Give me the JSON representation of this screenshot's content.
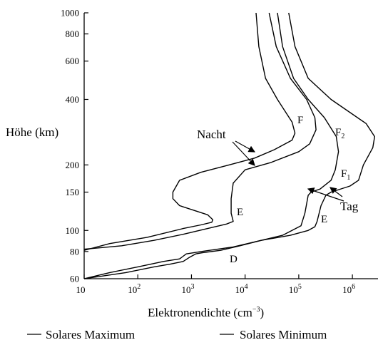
{
  "chart_data": {
    "type": "line",
    "xlabel": "Elektronendichte (cm",
    "xlabel_exp": "−3",
    "xlabel_close": ")",
    "ylabel": "Höhe (km)",
    "x_scale": "log",
    "y_scale": "log",
    "xlim": [
      10,
      3000000
    ],
    "ylim": [
      60,
      1000
    ],
    "x_ticks": [
      {
        "value": 10,
        "base": "10",
        "exp": ""
      },
      {
        "value": 100,
        "base": "10",
        "exp": "2"
      },
      {
        "value": 1000,
        "base": "10",
        "exp": "3"
      },
      {
        "value": 10000,
        "base": "10",
        "exp": "4"
      },
      {
        "value": 100000,
        "base": "10",
        "exp": "5"
      },
      {
        "value": 1000000,
        "base": "10",
        "exp": "6"
      }
    ],
    "y_ticks": [
      {
        "value": 1000,
        "label": "1000"
      },
      {
        "value": 800,
        "label": "800"
      },
      {
        "value": 600,
        "label": "600"
      },
      {
        "value": 400,
        "label": "400"
      },
      {
        "value": 200,
        "label": "200"
      },
      {
        "value": 150,
        "label": "150"
      },
      {
        "value": 100,
        "label": "100"
      },
      {
        "value": 80,
        "label": "80"
      },
      {
        "value": 60,
        "label": "60"
      }
    ],
    "series": [
      {
        "key": "night-inner",
        "points": [
          [
            16000,
            1000
          ],
          [
            18000,
            700
          ],
          [
            24000,
            500
          ],
          [
            40000,
            400
          ],
          [
            75000,
            315
          ],
          [
            85000,
            280
          ],
          [
            75000,
            260
          ],
          [
            35000,
            235
          ],
          [
            15000,
            215
          ],
          [
            5000,
            200
          ],
          [
            1500,
            185
          ],
          [
            600,
            170
          ],
          [
            450,
            150
          ],
          [
            450,
            140
          ],
          [
            600,
            130
          ],
          [
            2000,
            118
          ],
          [
            2500,
            112
          ],
          [
            2400,
            109
          ],
          [
            1500,
            106
          ],
          [
            700,
            102
          ],
          [
            150,
            93
          ],
          [
            30,
            87
          ],
          [
            10,
            81
          ]
        ]
      },
      {
        "key": "night-outer",
        "points": [
          [
            28000,
            1000
          ],
          [
            38000,
            700
          ],
          [
            70000,
            500
          ],
          [
            140000,
            400
          ],
          [
            200000,
            330
          ],
          [
            210000,
            290
          ],
          [
            160000,
            250
          ],
          [
            100000,
            230
          ],
          [
            30000,
            205
          ],
          [
            10000,
            190
          ],
          [
            6000,
            165
          ],
          [
            5500,
            140
          ],
          [
            5500,
            120
          ],
          [
            6000,
            110
          ],
          [
            4500,
            107
          ],
          [
            2000,
            102
          ],
          [
            700,
            96
          ],
          [
            200,
            90
          ],
          [
            50,
            85
          ],
          [
            10,
            82
          ]
        ]
      },
      {
        "key": "day-max",
        "points": [
          [
            65000,
            1000
          ],
          [
            85000,
            700
          ],
          [
            150000,
            500
          ],
          [
            400000,
            400
          ],
          [
            1800000,
            310
          ],
          [
            2600000,
            270
          ],
          [
            2400000,
            240
          ],
          [
            1600000,
            200
          ],
          [
            1300000,
            170
          ],
          [
            900000,
            160
          ],
          [
            400000,
            150
          ],
          [
            320000,
            145
          ],
          [
            260000,
            130
          ],
          [
            220000,
            110
          ],
          [
            200000,
            104
          ],
          [
            150000,
            100
          ],
          [
            70000,
            95
          ],
          [
            20000,
            90
          ],
          [
            8000,
            85
          ],
          [
            3500,
            81
          ],
          [
            1600,
            79
          ],
          [
            1200,
            78
          ],
          [
            900,
            75
          ],
          [
            700,
            72
          ],
          [
            400,
            70
          ],
          [
            200,
            68
          ],
          [
            60,
            64
          ],
          [
            10,
            60
          ]
        ]
      },
      {
        "key": "day-min",
        "points": [
          [
            40000,
            1000
          ],
          [
            50000,
            700
          ],
          [
            80000,
            500
          ],
          [
            150000,
            400
          ],
          [
            300000,
            330
          ],
          [
            500000,
            270
          ],
          [
            550000,
            230
          ],
          [
            480000,
            190
          ],
          [
            400000,
            170
          ],
          [
            250000,
            155
          ],
          [
            170000,
            150
          ],
          [
            150000,
            145
          ],
          [
            130000,
            120
          ],
          [
            110000,
            105
          ],
          [
            50000,
            95
          ],
          [
            20000,
            90
          ],
          [
            6000,
            84
          ],
          [
            1500,
            80
          ],
          [
            800,
            78
          ],
          [
            600,
            74
          ],
          [
            300,
            72
          ],
          [
            100,
            68
          ],
          [
            30,
            64
          ],
          [
            10,
            60
          ]
        ]
      }
    ],
    "annotations": [
      {
        "key": "F",
        "text": "F",
        "sub": ""
      },
      {
        "key": "F2",
        "text": "F",
        "sub": "2"
      },
      {
        "key": "F1",
        "text": "F",
        "sub": "1"
      },
      {
        "key": "E_night",
        "text": "E",
        "sub": ""
      },
      {
        "key": "E_day",
        "text": "E",
        "sub": ""
      },
      {
        "key": "D",
        "text": "D",
        "sub": ""
      },
      {
        "key": "Nacht",
        "text": "Nacht",
        "sub": ""
      },
      {
        "key": "Tag",
        "text": "Tag",
        "sub": ""
      }
    ],
    "legend": [
      {
        "label": "Solares Maximum"
      },
      {
        "label": "Solares Minimum"
      }
    ],
    "legend_position": "bottom",
    "grid": false
  }
}
